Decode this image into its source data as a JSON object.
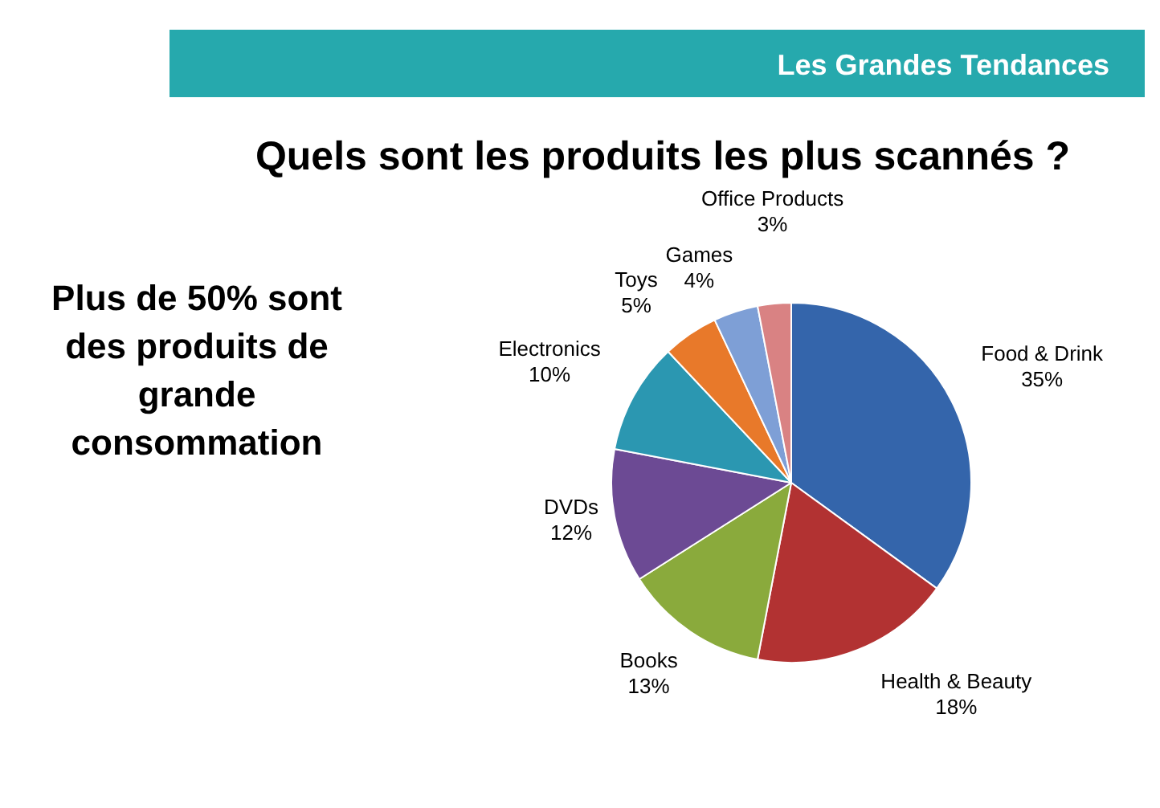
{
  "chart_data": {
    "type": "pie",
    "title": "Quels sont les produits les plus scannés ?",
    "subtitle": "Les Grandes Tendances",
    "annotations": [
      "Plus de 50% sont des produits de grande consommation"
    ],
    "categories": [
      "Food & Drink",
      "Health & Beauty",
      "Books",
      "DVDs",
      "Electronics",
      "Toys",
      "Games",
      "Office Products"
    ],
    "values": [
      35,
      18,
      13,
      12,
      10,
      5,
      4,
      3
    ],
    "value_labels": [
      "35%",
      "18%",
      "13%",
      "12%",
      "10%",
      "5%",
      "4%",
      "3%"
    ],
    "colors": [
      "#3465ab",
      "#b23232",
      "#8aaa3c",
      "#6c4a94",
      "#2b97b1",
      "#e8792a",
      "#7e9fd6",
      "#d98283"
    ]
  }
}
